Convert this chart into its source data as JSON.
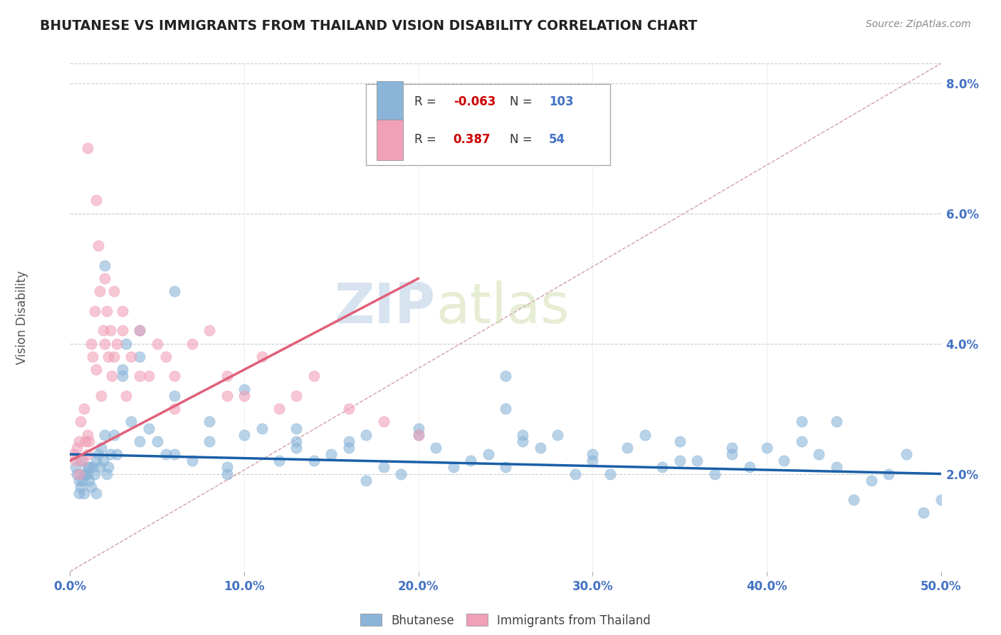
{
  "title": "BHUTANESE VS IMMIGRANTS FROM THAILAND VISION DISABILITY CORRELATION CHART",
  "source": "Source: ZipAtlas.com",
  "ylabel": "Vision Disability",
  "xmin": 0.0,
  "xmax": 50.0,
  "ymin": 0.5,
  "ymax": 8.3,
  "ytick_labels": [
    "2.0%",
    "4.0%",
    "6.0%",
    "8.0%"
  ],
  "ytick_vals": [
    2.0,
    4.0,
    6.0,
    8.0
  ],
  "xtick_labels": [
    "0.0%",
    "10.0%",
    "20.0%",
    "30.0%",
    "40.0%",
    "50.0%"
  ],
  "xtick_vals": [
    0.0,
    10.0,
    20.0,
    30.0,
    40.0,
    50.0
  ],
  "legend_blue_label": "Bhutanese",
  "legend_pink_label": "Immigrants from Thailand",
  "R_blue": -0.063,
  "N_blue": 103,
  "R_pink": 0.387,
  "N_pink": 54,
  "blue_color": "#8ab4d8",
  "pink_color": "#f0a0b8",
  "blue_line_color": "#1a5fa8",
  "pink_line_color": "#e0607a",
  "ref_line_color": "#d0a0a8",
  "watermark_color": "#c8d8ee",
  "background_color": "#ffffff",
  "title_color": "#222222",
  "axis_label_color": "#4472c4",
  "legend_R_blue_color": "#cc0000",
  "legend_R_pink_color": "#cc0000",
  "legend_N_color": "#4472c4",
  "blue_scatter_x": [
    0.3,
    0.4,
    0.5,
    0.5,
    0.6,
    0.6,
    0.7,
    0.8,
    0.8,
    0.9,
    1.0,
    1.0,
    1.1,
    1.1,
    1.2,
    1.3,
    1.4,
    1.5,
    1.5,
    1.6,
    1.7,
    1.8,
    1.9,
    2.0,
    2.1,
    2.2,
    2.3,
    2.5,
    2.7,
    3.0,
    3.2,
    3.5,
    4.0,
    4.5,
    5.0,
    5.5,
    6.0,
    7.0,
    8.0,
    9.0,
    10.0,
    11.0,
    12.0,
    13.0,
    14.0,
    15.0,
    16.0,
    17.0,
    18.0,
    19.0,
    20.0,
    21.0,
    22.0,
    23.0,
    24.0,
    25.0,
    26.0,
    27.0,
    28.0,
    29.0,
    30.0,
    31.0,
    32.0,
    33.0,
    34.0,
    35.0,
    36.0,
    37.0,
    38.0,
    39.0,
    40.0,
    41.0,
    42.0,
    43.0,
    44.0,
    45.0,
    46.0,
    47.0,
    48.0,
    49.0,
    50.0,
    2.0,
    3.0,
    4.0,
    6.0,
    8.0,
    10.0,
    13.0,
    16.0,
    20.0,
    25.0,
    30.0,
    38.0,
    44.0,
    35.0,
    25.0,
    17.0,
    9.0,
    6.0,
    4.0,
    13.0,
    26.0,
    42.0
  ],
  "blue_scatter_y": [
    2.1,
    2.0,
    1.9,
    1.7,
    1.8,
    2.2,
    1.9,
    1.7,
    2.0,
    2.0,
    2.0,
    2.1,
    1.9,
    2.1,
    1.8,
    2.1,
    2.0,
    1.7,
    2.2,
    2.3,
    2.1,
    2.4,
    2.2,
    2.6,
    2.0,
    2.1,
    2.3,
    2.6,
    2.3,
    3.5,
    4.0,
    2.8,
    4.2,
    2.7,
    2.5,
    2.3,
    3.2,
    2.2,
    2.5,
    2.0,
    2.6,
    2.7,
    2.2,
    2.4,
    2.2,
    2.3,
    2.5,
    2.6,
    2.1,
    2.0,
    2.7,
    2.4,
    2.1,
    2.2,
    2.3,
    2.1,
    2.5,
    2.4,
    2.6,
    2.0,
    2.2,
    2.0,
    2.4,
    2.6,
    2.1,
    2.5,
    2.2,
    2.0,
    2.3,
    2.1,
    2.4,
    2.2,
    2.5,
    2.3,
    2.1,
    1.6,
    1.9,
    2.0,
    2.3,
    1.4,
    1.6,
    5.2,
    3.6,
    3.8,
    4.8,
    2.8,
    3.3,
    2.5,
    2.4,
    2.6,
    3.5,
    2.3,
    2.4,
    2.8,
    2.2,
    3.0,
    1.9,
    2.1,
    2.3,
    2.5,
    2.7,
    2.6,
    2.8
  ],
  "pink_scatter_x": [
    0.2,
    0.3,
    0.4,
    0.5,
    0.5,
    0.6,
    0.7,
    0.8,
    0.9,
    1.0,
    1.0,
    1.1,
    1.2,
    1.3,
    1.4,
    1.5,
    1.6,
    1.7,
    1.8,
    1.9,
    2.0,
    2.1,
    2.2,
    2.3,
    2.4,
    2.5,
    2.7,
    3.0,
    3.2,
    3.5,
    4.0,
    4.5,
    5.0,
    5.5,
    6.0,
    7.0,
    8.0,
    9.0,
    10.0,
    11.0,
    12.0,
    13.0,
    14.0,
    16.0,
    18.0,
    20.0,
    1.0,
    1.5,
    2.0,
    2.5,
    3.0,
    4.0,
    6.0,
    9.0
  ],
  "pink_scatter_y": [
    2.3,
    2.2,
    2.4,
    2.5,
    2.0,
    2.8,
    2.2,
    3.0,
    2.5,
    2.3,
    2.6,
    2.5,
    4.0,
    3.8,
    4.5,
    3.6,
    5.5,
    4.8,
    3.2,
    4.2,
    4.0,
    4.5,
    3.8,
    4.2,
    3.5,
    3.8,
    4.0,
    4.5,
    3.2,
    3.8,
    4.2,
    3.5,
    4.0,
    3.8,
    3.5,
    4.0,
    4.2,
    3.5,
    3.2,
    3.8,
    3.0,
    3.2,
    3.5,
    3.0,
    2.8,
    2.6,
    7.0,
    6.2,
    5.0,
    4.8,
    4.2,
    3.5,
    3.0,
    3.2
  ],
  "blue_line_x0": 0.0,
  "blue_line_x1": 50.0,
  "blue_line_y0": 2.3,
  "blue_line_y1": 2.0,
  "pink_line_x0": 0.0,
  "pink_line_x1": 20.0,
  "pink_line_y0": 2.2,
  "pink_line_y1": 5.0,
  "ref_line_x0": 0.0,
  "ref_line_x1": 50.0,
  "ref_line_y0": 0.5,
  "ref_line_y1": 8.3
}
